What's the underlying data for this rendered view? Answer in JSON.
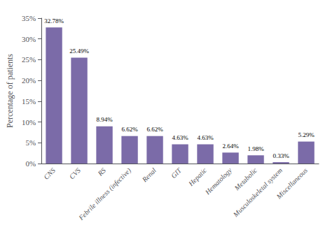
{
  "chart_data": {
    "type": "bar",
    "categories": [
      "CNS",
      "CVS",
      "RS",
      "Febrile illness (infective)",
      "Renal",
      "GIT",
      "Hepatic",
      "Hematology",
      "Metabolic",
      "Musculoskeletal system",
      "Miscellaneous"
    ],
    "values": [
      32.78,
      25.49,
      8.94,
      6.62,
      6.62,
      4.63,
      4.63,
      2.64,
      1.98,
      0.33,
      5.29
    ],
    "value_labels": [
      "32.78%",
      "25.49%",
      "8.94%",
      "6.62%",
      "6.62%",
      "4.63%",
      "4.63%",
      "2.64%",
      "1.98%",
      "0.33%",
      "5.29%"
    ],
    "data_labels": true,
    "color": "#7B6BA8",
    "ylabel": "Percentage of patients",
    "ylim": [
      0,
      35
    ],
    "yticks": [
      {
        "value": 0,
        "label": "0%"
      },
      {
        "value": 5,
        "label": "5%"
      },
      {
        "value": 10,
        "label": "10%"
      },
      {
        "value": 15,
        "label": "15%"
      },
      {
        "value": 20,
        "label": "20%"
      },
      {
        "value": 25,
        "label": "25%"
      },
      {
        "value": 30,
        "label": "30%"
      },
      {
        "value": 35,
        "label": "35%"
      }
    ],
    "grid": false
  }
}
